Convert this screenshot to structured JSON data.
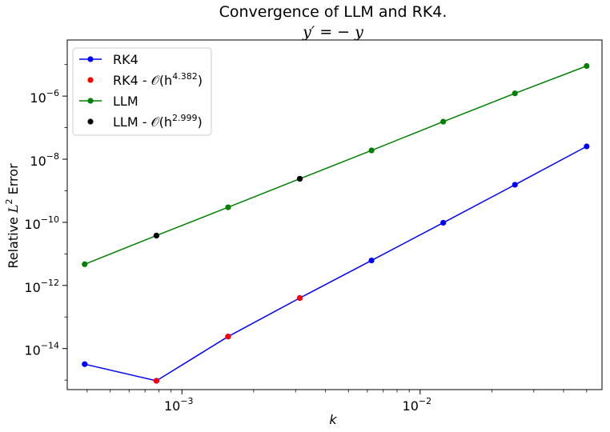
{
  "chart_data": {
    "type": "line",
    "title_line1": "Convergence of LLM and RK4.",
    "title_line2": "y′ = − y",
    "xlabel": "k",
    "ylabel_prefix": "Relative ",
    "ylabel_var": "L",
    "ylabel_sup": "2",
    "ylabel_suffix": " Error",
    "xscale": "log",
    "yscale": "log",
    "xlim": [
      0.00033,
      0.058
    ],
    "ylim": [
      5e-16,
      6e-05
    ],
    "xticks": [
      {
        "value": 0.001,
        "base": "10",
        "exp": "−3"
      },
      {
        "value": 0.01,
        "base": "10",
        "exp": "−2"
      }
    ],
    "yticks": [
      {
        "value": 1e-14,
        "base": "10",
        "exp": "−14"
      },
      {
        "value": 1e-12,
        "base": "10",
        "exp": "−12"
      },
      {
        "value": 1e-10,
        "base": "10",
        "exp": "−10"
      },
      {
        "value": 1e-08,
        "base": "10",
        "exp": "−8"
      },
      {
        "value": 1e-06,
        "base": "10",
        "exp": "−6"
      }
    ],
    "grid": false,
    "legend_position": "upper-left",
    "series": [
      {
        "name": "RK4",
        "kind": "line",
        "color": "#0000ff",
        "x": [
          0.000390625,
          0.00078125,
          0.0015625,
          0.003125,
          0.00625,
          0.0125,
          0.025,
          0.05
        ],
        "y": [
          3.2e-15,
          9.5e-16,
          2.4e-14,
          4e-13,
          6.2e-12,
          9.7e-11,
          1.55e-09,
          2.55e-08
        ]
      },
      {
        "name": "RK4 - 𝒪(h",
        "sup": "4.382",
        "name_suffix": ")",
        "kind": "points",
        "color": "#ff0000",
        "x": [
          0.00078125,
          0.0015625,
          0.003125
        ],
        "y": [
          9.5e-16,
          2.4e-14,
          4e-13
        ]
      },
      {
        "name": "LLM",
        "kind": "line",
        "color": "#008000",
        "x": [
          0.000390625,
          0.00078125,
          0.0015625,
          0.003125,
          0.00625,
          0.0125,
          0.025,
          0.05
        ],
        "y": [
          4.7e-12,
          3.8e-11,
          3e-10,
          2.4e-09,
          1.9e-08,
          1.55e-07,
          1.22e-06,
          9e-06
        ]
      },
      {
        "name": "LLM - 𝒪(h",
        "sup": "2.999",
        "name_suffix": ")",
        "kind": "points",
        "color": "#000000",
        "x": [
          0.00078125,
          0.003125
        ],
        "y": [
          3.8e-11,
          2.4e-09
        ]
      }
    ]
  }
}
